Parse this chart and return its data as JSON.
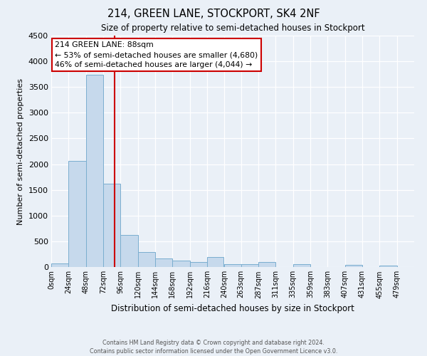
{
  "title": "214, GREEN LANE, STOCKPORT, SK4 2NF",
  "subtitle": "Size of property relative to semi-detached houses in Stockport",
  "xlabel": "Distribution of semi-detached houses by size in Stockport",
  "ylabel": "Number of semi-detached properties",
  "bar_left_edges": [
    0,
    24,
    48,
    72,
    96,
    120,
    144,
    168,
    192,
    216,
    240,
    263,
    287,
    311,
    335,
    359,
    383,
    407,
    431,
    455
  ],
  "bar_widths": [
    24,
    24,
    24,
    24,
    24,
    24,
    24,
    24,
    24,
    23,
    24,
    24,
    24,
    24,
    24,
    24,
    24,
    24,
    24,
    24
  ],
  "bar_heights": [
    70,
    2060,
    3740,
    1620,
    630,
    295,
    170,
    130,
    95,
    200,
    60,
    55,
    100,
    0,
    50,
    0,
    0,
    35,
    0,
    30
  ],
  "bar_color": "#c6d9ec",
  "bar_edge_color": "#7aaecf",
  "tick_labels": [
    "0sqm",
    "24sqm",
    "48sqm",
    "72sqm",
    "96sqm",
    "120sqm",
    "144sqm",
    "168sqm",
    "192sqm",
    "216sqm",
    "240sqm",
    "263sqm",
    "287sqm",
    "311sqm",
    "335sqm",
    "359sqm",
    "383sqm",
    "407sqm",
    "431sqm",
    "455sqm",
    "479sqm"
  ],
  "tick_positions": [
    0,
    24,
    48,
    72,
    96,
    120,
    144,
    168,
    192,
    216,
    240,
    263,
    287,
    311,
    335,
    359,
    383,
    407,
    431,
    455,
    479
  ],
  "ylim": [
    0,
    4500
  ],
  "xlim": [
    0,
    503
  ],
  "property_size": 88,
  "vline_color": "#cc0000",
  "annotation_title": "214 GREEN LANE: 88sqm",
  "annotation_line1": "← 53% of semi-detached houses are smaller (4,680)",
  "annotation_line2": "46% of semi-detached houses are larger (4,044) →",
  "annotation_box_edge": "#cc0000",
  "footer_line1": "Contains HM Land Registry data © Crown copyright and database right 2024.",
  "footer_line2": "Contains public sector information licensed under the Open Government Licence v3.0.",
  "bg_color": "#eaf0f7",
  "grid_color": "#ffffff",
  "yticks": [
    0,
    500,
    1000,
    1500,
    2000,
    2500,
    3000,
    3500,
    4000,
    4500
  ]
}
